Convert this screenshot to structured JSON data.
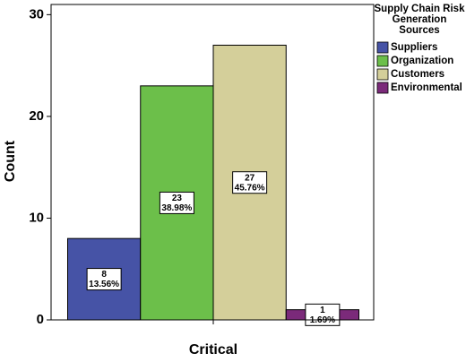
{
  "chart_data": {
    "type": "bar",
    "x_label": "Critical",
    "y_label": "Count",
    "legend_title": "Supply Chain Risk Generation Sources",
    "ylim": [
      0,
      31
    ],
    "yticks": [
      0,
      10,
      20,
      30
    ],
    "series": [
      {
        "name": "Suppliers",
        "color": "#4653a6",
        "values": [
          8
        ],
        "percent_labels": [
          "13.56%"
        ]
      },
      {
        "name": "Organization",
        "color": "#6cbf4a",
        "values": [
          23
        ],
        "percent_labels": [
          "38.98%"
        ]
      },
      {
        "name": "Customers",
        "color": "#d4cf9a",
        "values": [
          27
        ],
        "percent_labels": [
          "45.76%"
        ]
      },
      {
        "name": "Environmental",
        "color": "#7b2a7a",
        "values": [
          1
        ],
        "percent_labels": [
          "1.69%"
        ]
      }
    ]
  }
}
